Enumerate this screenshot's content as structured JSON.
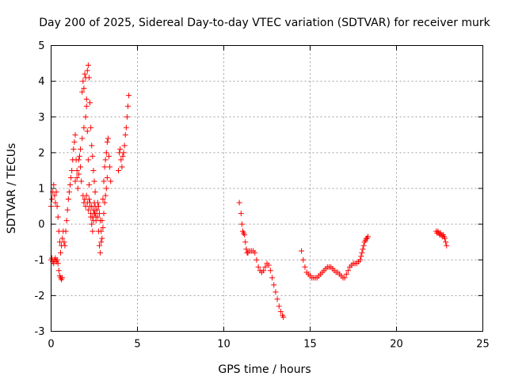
{
  "chart_data": {
    "type": "scatter",
    "title": "Day 200 of 2025, Sidereal Day-to-day VTEC variation (SDTVAR) for receiver murk",
    "xlabel": "GPS time / hours",
    "ylabel": "SDTVAR / TECUs",
    "xlim": [
      0,
      25
    ],
    "ylim": [
      -3,
      5
    ],
    "xticks": [
      "0",
      "5",
      "10",
      "15",
      "20",
      "25"
    ],
    "yticks": [
      "-3",
      "-2",
      "-1",
      "0",
      "1",
      "2",
      "3",
      "4",
      "5"
    ],
    "grid": true,
    "marker": "plus",
    "color": "#ff0000",
    "series": [
      {
        "name": "SDTVAR",
        "segments": [
          [
            [
              0.0,
              0.5
            ],
            [
              0.05,
              0.7
            ],
            [
              0.1,
              0.9
            ],
            [
              0.15,
              1.1
            ],
            [
              0.2,
              0.8
            ],
            [
              0.25,
              0.6
            ],
            [
              0.3,
              0.9
            ],
            [
              0.35,
              0.5
            ],
            [
              0.4,
              0.2
            ],
            [
              0.45,
              -0.2
            ],
            [
              0.5,
              -0.5
            ],
            [
              0.55,
              -0.8
            ],
            [
              0.6,
              -0.6
            ],
            [
              0.65,
              -0.4
            ],
            [
              0.7,
              -0.2
            ],
            [
              0.75,
              -0.5
            ],
            [
              0.8,
              -0.6
            ],
            [
              0.85,
              -0.2
            ],
            [
              0.9,
              0.1
            ],
            [
              0.95,
              0.4
            ],
            [
              1.0,
              0.7
            ],
            [
              1.05,
              0.9
            ],
            [
              1.1,
              1.1
            ],
            [
              1.15,
              1.3
            ],
            [
              1.2,
              1.5
            ],
            [
              1.25,
              1.8
            ],
            [
              1.3,
              2.1
            ],
            [
              1.35,
              2.3
            ],
            [
              1.4,
              2.5
            ],
            [
              1.45,
              1.8
            ],
            [
              1.5,
              1.3
            ],
            [
              1.55,
              1.0
            ],
            [
              1.6,
              1.4
            ],
            [
              1.65,
              1.9
            ],
            [
              1.7,
              1.6
            ],
            [
              1.75,
              1.2
            ],
            [
              1.8,
              3.7
            ],
            [
              1.85,
              4.0
            ],
            [
              1.9,
              3.8
            ],
            [
              1.95,
              4.2
            ],
            [
              2.0,
              4.1
            ],
            [
              2.05,
              3.3
            ],
            [
              2.1,
              2.6
            ],
            [
              2.15,
              1.8
            ],
            [
              2.2,
              1.1
            ],
            [
              2.25,
              0.6
            ],
            [
              2.3,
              0.3
            ],
            [
              2.35,
              0.5
            ],
            [
              2.4,
              0.2
            ],
            [
              2.45,
              0.4
            ],
            [
              2.5,
              0.6
            ],
            [
              2.55,
              0.3
            ],
            [
              2.6,
              0.1
            ],
            [
              2.65,
              0.4
            ],
            [
              2.7,
              0.2
            ],
            [
              2.75,
              -0.2
            ],
            [
              2.8,
              -0.6
            ],
            [
              2.85,
              -0.8
            ],
            [
              2.9,
              -0.5
            ],
            [
              2.95,
              0.1
            ],
            [
              3.0,
              0.7
            ],
            [
              3.05,
              1.2
            ],
            [
              3.1,
              1.6
            ],
            [
              3.15,
              1.8
            ],
            [
              3.2,
              2.0
            ],
            [
              3.25,
              2.3
            ],
            [
              3.3,
              2.4
            ],
            [
              3.35,
              1.9
            ],
            [
              3.4,
              1.6
            ],
            [
              3.45,
              1.2
            ]
          ],
          [
            [
              0.0,
              -1.0
            ],
            [
              0.05,
              -0.95
            ],
            [
              0.1,
              -1.05
            ],
            [
              0.15,
              -1.1
            ],
            [
              0.2,
              -1.0
            ],
            [
              0.25,
              -0.95
            ],
            [
              0.3,
              -1.05
            ],
            [
              0.35,
              -1.0
            ],
            [
              0.4,
              -1.1
            ],
            [
              0.45,
              -1.3
            ],
            [
              0.5,
              -1.45
            ],
            [
              0.55,
              -1.5
            ],
            [
              0.6,
              -1.55
            ],
            [
              0.65,
              -1.5
            ]
          ],
          [
            [
              1.85,
              0.8
            ],
            [
              1.9,
              0.6
            ],
            [
              1.95,
              0.7
            ],
            [
              2.0,
              0.5
            ],
            [
              2.05,
              0.8
            ],
            [
              2.1,
              0.6
            ],
            [
              2.15,
              0.4
            ],
            [
              2.2,
              0.7
            ],
            [
              2.25,
              0.5
            ],
            [
              2.3,
              0.2
            ],
            [
              2.35,
              0.0
            ],
            [
              2.4,
              -0.2
            ],
            [
              2.45,
              0.1
            ],
            [
              2.5,
              0.3
            ],
            [
              2.55,
              0.5
            ],
            [
              2.6,
              0.2
            ],
            [
              2.65,
              0.4
            ],
            [
              2.7,
              0.6
            ],
            [
              2.75,
              0.5
            ],
            [
              2.8,
              0.3
            ],
            [
              2.85,
              0.1
            ],
            [
              2.9,
              -0.2
            ],
            [
              2.95,
              -0.4
            ],
            [
              3.0,
              -0.1
            ],
            [
              3.05,
              0.3
            ],
            [
              3.1,
              0.6
            ],
            [
              3.15,
              0.8
            ],
            [
              3.2,
              1.0
            ],
            [
              3.25,
              1.3
            ]
          ],
          [
            [
              1.4,
              1.2
            ],
            [
              1.5,
              1.5
            ],
            [
              1.6,
              1.8
            ],
            [
              1.7,
              2.1
            ],
            [
              1.8,
              2.4
            ],
            [
              1.9,
              2.7
            ],
            [
              2.0,
              3.0
            ],
            [
              2.05,
              3.5
            ],
            [
              2.1,
              4.3
            ],
            [
              2.15,
              4.45
            ],
            [
              2.2,
              4.1
            ],
            [
              2.25,
              3.4
            ],
            [
              2.3,
              2.7
            ],
            [
              2.35,
              2.2
            ],
            [
              2.4,
              1.9
            ],
            [
              2.45,
              1.5
            ],
            [
              2.5,
              1.2
            ],
            [
              2.55,
              0.9
            ]
          ],
          [
            [
              3.9,
              1.5
            ],
            [
              3.95,
              2.0
            ],
            [
              4.0,
              2.1
            ],
            [
              4.05,
              1.8
            ],
            [
              4.1,
              1.6
            ],
            [
              4.15,
              1.9
            ],
            [
              4.2,
              2.0
            ],
            [
              4.25,
              2.2
            ],
            [
              4.3,
              2.5
            ],
            [
              4.35,
              2.7
            ],
            [
              4.4,
              3.0
            ],
            [
              4.45,
              3.3
            ],
            [
              4.5,
              3.6
            ]
          ],
          [
            [
              10.9,
              0.6
            ],
            [
              11.0,
              0.3
            ],
            [
              11.05,
              0.0
            ],
            [
              11.1,
              -0.2
            ],
            [
              11.15,
              -0.25
            ],
            [
              11.2,
              -0.3
            ],
            [
              11.25,
              -0.5
            ],
            [
              11.3,
              -0.7
            ],
            [
              11.35,
              -0.8
            ],
            [
              11.4,
              -0.8
            ],
            [
              11.5,
              -0.75
            ],
            [
              11.6,
              -0.75
            ],
            [
              11.7,
              -0.75
            ],
            [
              11.8,
              -0.8
            ],
            [
              11.9,
              -1.0
            ],
            [
              12.0,
              -1.2
            ],
            [
              12.1,
              -1.3
            ],
            [
              12.2,
              -1.35
            ],
            [
              12.3,
              -1.3
            ],
            [
              12.4,
              -1.2
            ],
            [
              12.5,
              -1.1
            ],
            [
              12.6,
              -1.15
            ],
            [
              12.7,
              -1.3
            ],
            [
              12.8,
              -1.5
            ],
            [
              12.9,
              -1.7
            ],
            [
              13.0,
              -1.9
            ],
            [
              13.1,
              -2.1
            ],
            [
              13.2,
              -2.3
            ],
            [
              13.3,
              -2.45
            ],
            [
              13.4,
              -2.55
            ],
            [
              13.45,
              -2.6
            ]
          ],
          [
            [
              14.5,
              -0.75
            ],
            [
              14.6,
              -1.0
            ],
            [
              14.7,
              -1.2
            ],
            [
              14.8,
              -1.35
            ],
            [
              14.9,
              -1.4
            ],
            [
              15.0,
              -1.45
            ],
            [
              15.1,
              -1.5
            ],
            [
              15.2,
              -1.5
            ],
            [
              15.3,
              -1.5
            ],
            [
              15.4,
              -1.5
            ],
            [
              15.5,
              -1.45
            ],
            [
              15.6,
              -1.4
            ],
            [
              15.7,
              -1.35
            ],
            [
              15.8,
              -1.3
            ],
            [
              15.9,
              -1.25
            ],
            [
              16.0,
              -1.2
            ],
            [
              16.1,
              -1.2
            ],
            [
              16.2,
              -1.2
            ],
            [
              16.3,
              -1.25
            ],
            [
              16.4,
              -1.3
            ],
            [
              16.5,
              -1.35
            ],
            [
              16.6,
              -1.35
            ],
            [
              16.7,
              -1.4
            ],
            [
              16.8,
              -1.45
            ],
            [
              16.9,
              -1.5
            ],
            [
              17.0,
              -1.5
            ],
            [
              17.1,
              -1.4
            ],
            [
              17.2,
              -1.3
            ],
            [
              17.3,
              -1.2
            ],
            [
              17.4,
              -1.15
            ],
            [
              17.5,
              -1.1
            ],
            [
              17.6,
              -1.1
            ],
            [
              17.7,
              -1.1
            ],
            [
              17.8,
              -1.05
            ],
            [
              17.9,
              -1.0
            ],
            [
              17.95,
              -0.9
            ],
            [
              18.0,
              -0.8
            ],
            [
              18.05,
              -0.7
            ],
            [
              18.1,
              -0.6
            ],
            [
              18.15,
              -0.5
            ],
            [
              18.2,
              -0.45
            ],
            [
              18.25,
              -0.4
            ],
            [
              18.3,
              -0.4
            ],
            [
              18.35,
              -0.35
            ]
          ],
          [
            [
              22.3,
              -0.2
            ],
            [
              22.35,
              -0.25
            ],
            [
              22.4,
              -0.2
            ],
            [
              22.45,
              -0.25
            ],
            [
              22.5,
              -0.3
            ],
            [
              22.55,
              -0.25
            ],
            [
              22.6,
              -0.3
            ],
            [
              22.65,
              -0.35
            ],
            [
              22.7,
              -0.3
            ],
            [
              22.75,
              -0.35
            ],
            [
              22.8,
              -0.4
            ],
            [
              22.85,
              -0.5
            ],
            [
              22.9,
              -0.6
            ]
          ]
        ]
      }
    ]
  }
}
